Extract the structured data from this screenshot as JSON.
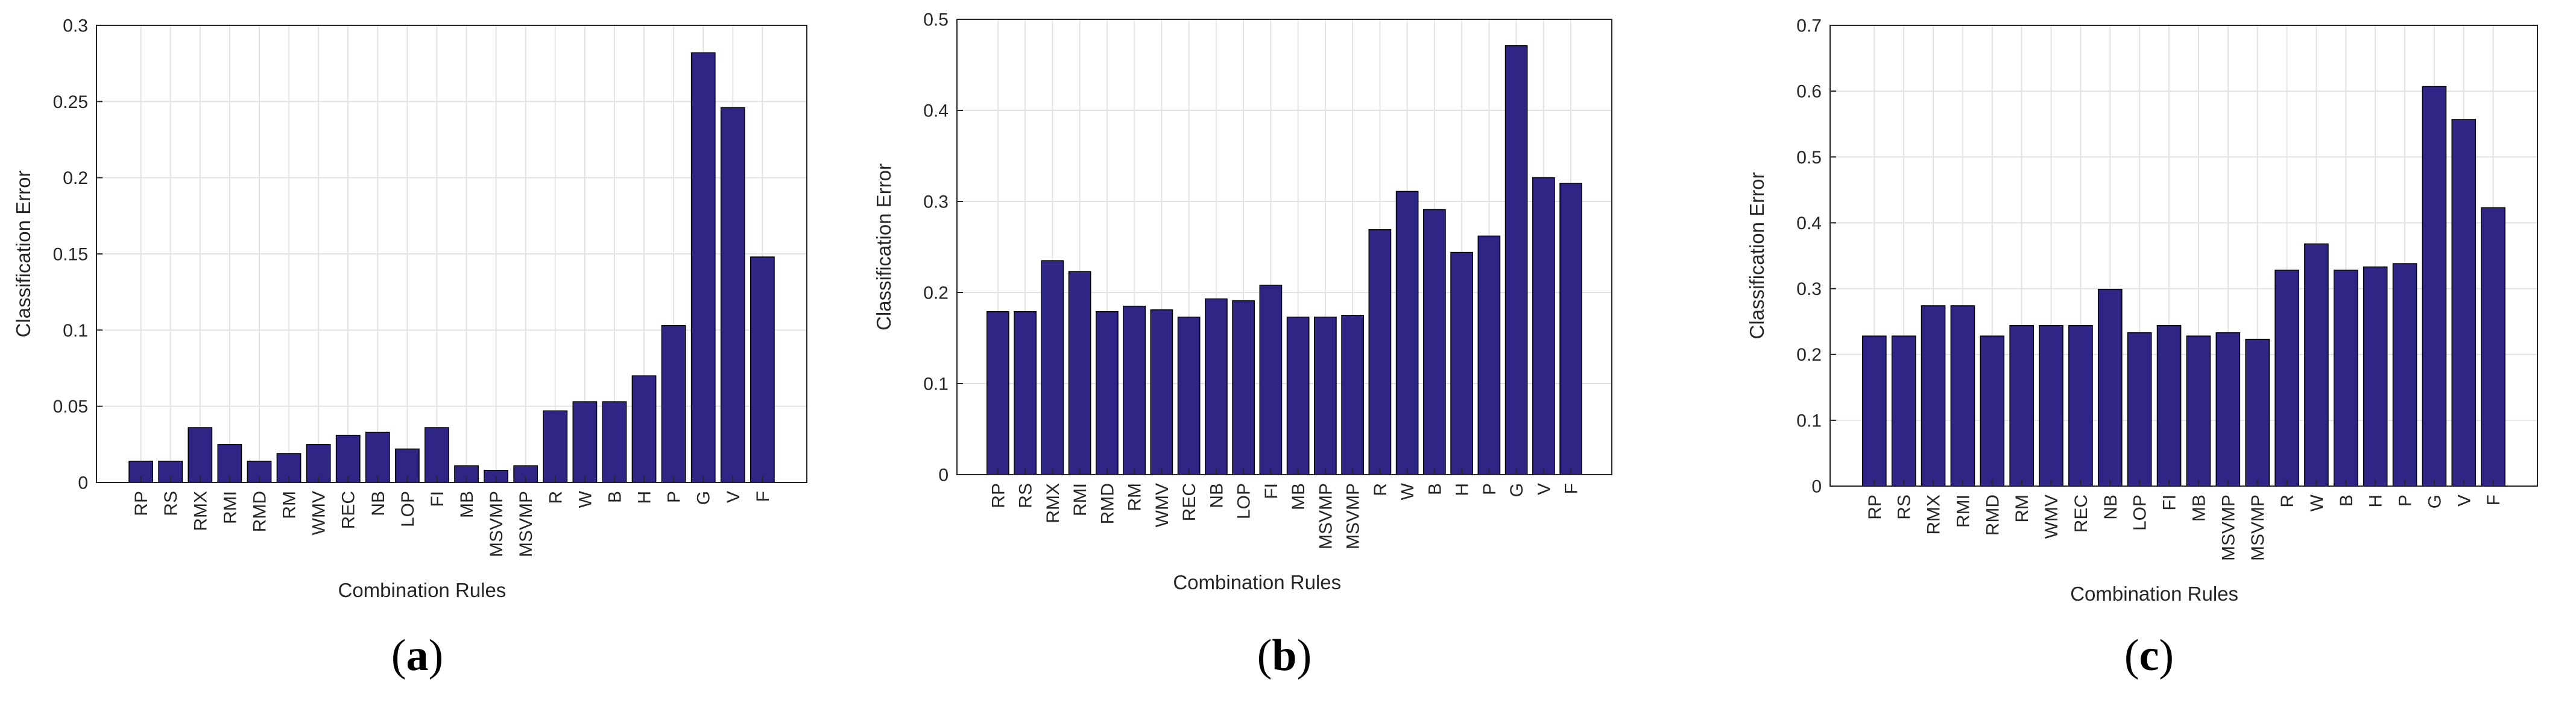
{
  "chart_data": [
    {
      "type": "bar",
      "panel_label": "a",
      "ylabel": "Classification Error",
      "xlabel": "Combination Rules",
      "categories": [
        "RP",
        "RS",
        "RMX",
        "RMI",
        "RMD",
        "RM",
        "WMV",
        "REC",
        "NB",
        "LOP",
        "FI",
        "MB",
        "MSVMP",
        "MSVMP",
        "R",
        "W",
        "B",
        "H",
        "P",
        "G",
        "V",
        "F"
      ],
      "values": [
        0.014,
        0.014,
        0.036,
        0.025,
        0.014,
        0.019,
        0.025,
        0.031,
        0.033,
        0.022,
        0.036,
        0.011,
        0.008,
        0.011,
        0.047,
        0.053,
        0.053,
        0.07,
        0.103,
        0.282,
        0.246,
        0.148
      ],
      "ylim": [
        0,
        0.3
      ],
      "yticks": [
        0,
        0.05,
        0.1,
        0.15,
        0.2,
        0.25,
        0.3
      ],
      "ytick_labels": [
        "0",
        "0.05",
        "0.1",
        "0.15",
        "0.2",
        "0.25",
        "0.3"
      ],
      "bar_color": "#2e2585",
      "grid": true
    },
    {
      "type": "bar",
      "panel_label": "b",
      "ylabel": "Classification Error",
      "xlabel": "Combination Rules",
      "categories": [
        "RP",
        "RS",
        "RMX",
        "RMI",
        "RMD",
        "RM",
        "WMV",
        "REC",
        "NB",
        "LOP",
        "FI",
        "MB",
        "MSVMP",
        "MSVMP",
        "R",
        "W",
        "B",
        "H",
        "P",
        "G",
        "V",
        "F"
      ],
      "values": [
        0.179,
        0.179,
        0.235,
        0.223,
        0.179,
        0.185,
        0.181,
        0.173,
        0.193,
        0.191,
        0.208,
        0.173,
        0.173,
        0.175,
        0.269,
        0.311,
        0.291,
        0.244,
        0.262,
        0.471,
        0.326,
        0.32
      ],
      "ylim": [
        0,
        0.5
      ],
      "yticks": [
        0,
        0.1,
        0.2,
        0.3,
        0.4,
        0.5
      ],
      "ytick_labels": [
        "0",
        "0.1",
        "0.2",
        "0.3",
        "0.4",
        "0.5"
      ],
      "bar_color": "#2e2585",
      "grid": true
    },
    {
      "type": "bar",
      "panel_label": "c",
      "ylabel": "Classification Error",
      "xlabel": "Combination Rules",
      "categories": [
        "RP",
        "RS",
        "RMX",
        "RMI",
        "RMD",
        "RM",
        "WMV",
        "REC",
        "NB",
        "LOP",
        "FI",
        "MB",
        "MSVMP",
        "MSVMP",
        "R",
        "W",
        "B",
        "H",
        "P",
        "G",
        "V",
        "F"
      ],
      "values": [
        0.228,
        0.228,
        0.274,
        0.274,
        0.228,
        0.244,
        0.244,
        0.244,
        0.299,
        0.233,
        0.244,
        0.228,
        0.233,
        0.223,
        0.328,
        0.368,
        0.328,
        0.333,
        0.338,
        0.607,
        0.557,
        0.423
      ],
      "ylim": [
        0,
        0.7
      ],
      "yticks": [
        0,
        0.1,
        0.2,
        0.3,
        0.4,
        0.5,
        0.6,
        0.7
      ],
      "ytick_labels": [
        "0",
        "0.1",
        "0.2",
        "0.3",
        "0.4",
        "0.5",
        "0.6",
        "0.7"
      ],
      "bar_color": "#2e2585",
      "grid": true
    }
  ]
}
